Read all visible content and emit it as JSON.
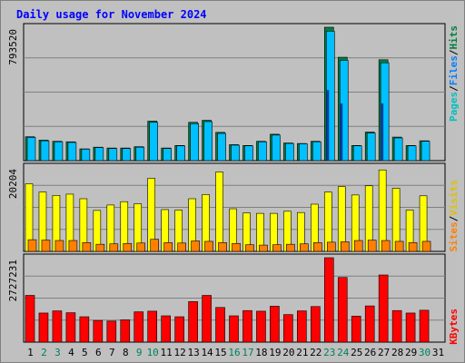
{
  "chart_data": {
    "type": "bar",
    "title": "Daily usage for November 2024",
    "days": [
      "1",
      "2",
      "3",
      "4",
      "5",
      "6",
      "7",
      "8",
      "9",
      "10",
      "11",
      "12",
      "13",
      "14",
      "15",
      "16",
      "17",
      "18",
      "19",
      "20",
      "21",
      "22",
      "23",
      "24",
      "25",
      "26",
      "27",
      "28",
      "29",
      "30",
      "31"
    ],
    "weekend_days": [
      "2",
      "3",
      "9",
      "10",
      "16",
      "17",
      "23",
      "24",
      "30"
    ],
    "panels": [
      {
        "id": "hits",
        "max_label": "793520",
        "ymax": 793520,
        "legend": [
          "Pages",
          "Files",
          "Hits"
        ],
        "series": [
          {
            "name": "Hits",
            "color": "#008040",
            "values": [
              142000,
              122000,
              115000,
              112000,
              70000,
              80000,
              75000,
              75000,
              83000,
              235000,
              75000,
              90000,
              228000,
              240000,
              168000,
              95000,
              90000,
              115000,
              157000,
              105000,
              102000,
              115000,
              0,
              0,
              90000,
              170000,
              0,
              140000,
              90000,
              118000,
              0
            ]
          },
          {
            "name": "Files",
            "color": "#00c0ff",
            "values": [
              138000,
              118000,
              112000,
              108000,
              68000,
              78000,
              72000,
              72000,
              80000,
              228000,
              72000,
              88000,
              220000,
              232000,
              162000,
              92000,
              88000,
              112000,
              152000,
              102000,
              100000,
              112000,
              0,
              0,
              88000,
              164000,
              0,
              135000,
              88000,
              115000,
              0
            ]
          },
          {
            "name": "Pages",
            "color": "#00c0c0",
            "values": [
              0,
              0,
              0,
              0,
              0,
              0,
              0,
              0,
              0,
              0,
              0,
              0,
              0,
              0,
              0,
              0,
              0,
              0,
              0,
              0,
              0,
              0,
              0,
              0,
              0,
              0,
              0,
              0,
              0,
              0,
              0
            ]
          }
        ],
        "hits_override": {
          "22": 793520,
          "23": 615000,
          "26": 600000
        },
        "pages_override": {
          "22": 420000,
          "23": 340000,
          "26": 340000
        }
      },
      {
        "id": "visits",
        "max_label": "20204",
        "ymax": 20204,
        "legend": [
          "Sites",
          "Visits"
        ],
        "series": [
          {
            "name": "Visits",
            "color": "#ffff00",
            "values": [
              16200,
              14200,
              13400,
              13700,
              12600,
              9800,
              11100,
              11900,
              11400,
              17500,
              10000,
              9900,
              12600,
              13600,
              19000,
              10200,
              9200,
              9100,
              9100,
              9600,
              9300,
              11300,
              14200,
              15500,
              13500,
              15700,
              19500,
              15100,
              9900,
              13300,
              0
            ]
          },
          {
            "name": "Sites",
            "color": "#ff8000",
            "values": [
              2800,
              2700,
              2600,
              2600,
              2100,
              1700,
              1800,
              1900,
              2000,
              2900,
              2100,
              2000,
              2500,
              2400,
              2100,
              1900,
              1600,
              1500,
              1600,
              1700,
              1800,
              2100,
              2200,
              2300,
              2600,
              2700,
              2600,
              2400,
              2100,
              2400,
              0
            ]
          }
        ]
      },
      {
        "id": "kbytes",
        "max_label": "2727231",
        "ymax": 2727231,
        "legend": [
          "KBytes"
        ],
        "series": [
          {
            "name": "KBytes",
            "color": "#ff0000",
            "values": [
              1510000,
              940000,
              1010000,
              950000,
              820000,
              700000,
              680000,
              720000,
              980000,
              1000000,
              850000,
              820000,
              1310000,
              1510000,
              1120000,
              850000,
              1020000,
              1000000,
              1160000,
              890000,
              1010000,
              1150000,
              2727231,
              2090000,
              840000,
              1170000,
              2170000,
              1020000,
              940000,
              1030000,
              0
            ]
          }
        ]
      }
    ],
    "colors": {
      "background": "#c0c0c0",
      "grid": "#808080",
      "title": "#0000ff",
      "weekday_label": "#000000",
      "weekend_label": "#00805c",
      "legend_pages": "#00c0c0",
      "legend_files": "#0080ff",
      "legend_hits": "#008040",
      "legend_sites": "#ff8000",
      "legend_visits": "#e0c000",
      "legend_kbytes": "#ff0000",
      "slash": "#000000"
    }
  }
}
